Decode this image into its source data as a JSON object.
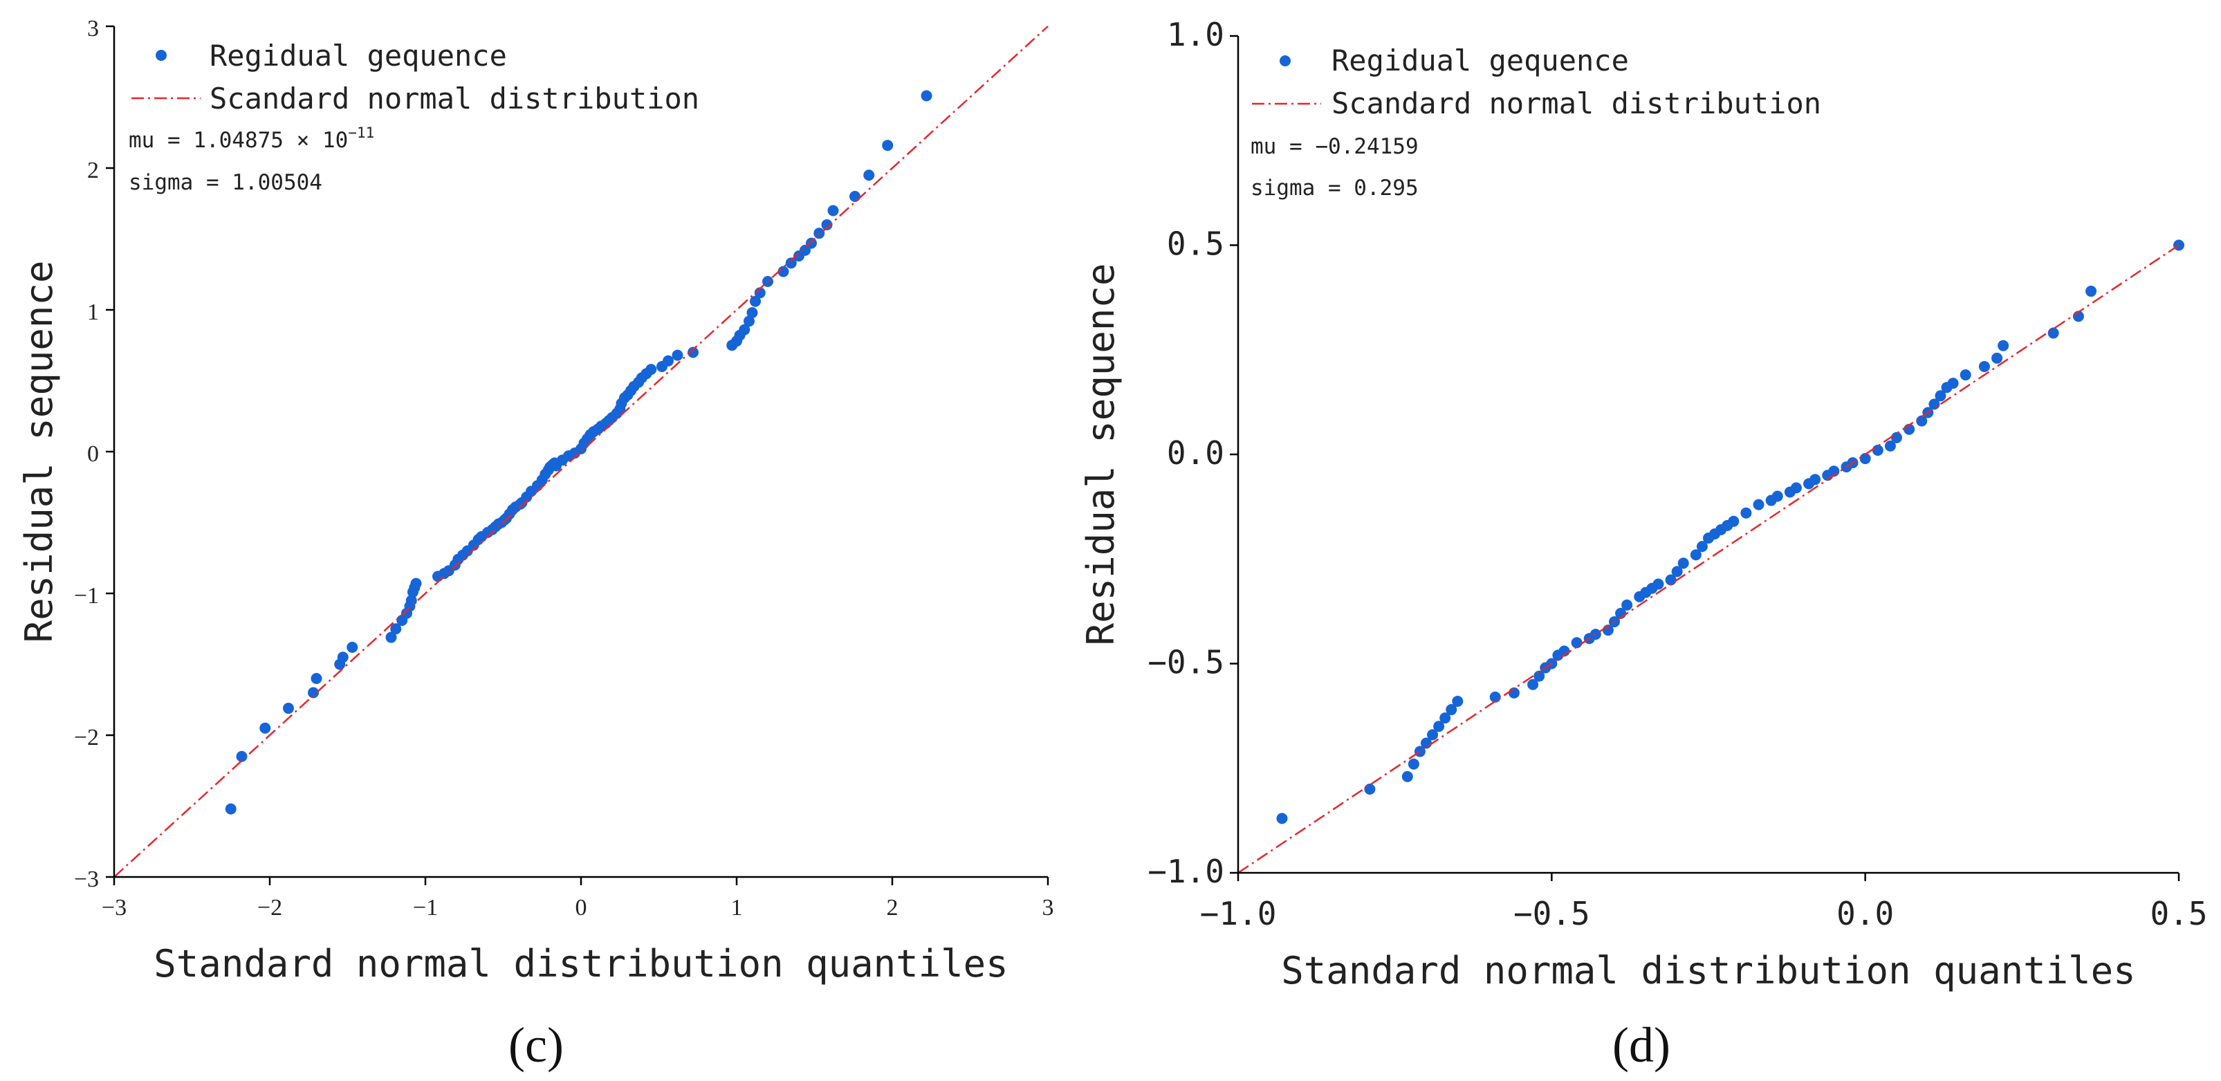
{
  "chart_data": [
    {
      "type": "scatter",
      "panel": "(c)",
      "title": "",
      "xlabel": "Standard normal distribution quantiles",
      "ylabel": "Residual sequence",
      "xlim": [
        -3,
        3
      ],
      "ylim": [
        -3,
        3
      ],
      "xticks": [
        "−3",
        "−2",
        "−1",
        "0",
        "1",
        "2",
        "3"
      ],
      "yticks": [
        "−3",
        "−2",
        "−1",
        "0",
        "1",
        "2",
        "3"
      ],
      "legend": {
        "points": "Regidual gequence",
        "line": "Scandard normal distribution",
        "position": "top-left"
      },
      "stats": {
        "mu_label": "mu = 1.04875 × 10",
        "mu_exp": "−11",
        "sigma_label": "sigma = 1.00504"
      },
      "reference_line": {
        "x": [
          -3,
          3
        ],
        "y": [
          -3,
          3
        ]
      },
      "x": [
        -2.25,
        -2.18,
        -2.03,
        -1.88,
        -1.72,
        -1.7,
        -1.55,
        -1.53,
        -1.47,
        -1.22,
        -1.19,
        -1.15,
        -1.12,
        -1.1,
        -1.09,
        -1.08,
        -1.07,
        -1.06,
        -0.92,
        -0.88,
        -0.85,
        -0.81,
        -0.79,
        -0.76,
        -0.73,
        -0.69,
        -0.66,
        -0.64,
        -0.6,
        -0.57,
        -0.55,
        -0.53,
        -0.51,
        -0.49,
        -0.48,
        -0.46,
        -0.44,
        -0.42,
        -0.39,
        -0.38,
        -0.35,
        -0.32,
        -0.28,
        -0.25,
        -0.23,
        -0.21,
        -0.2,
        -0.19,
        -0.18,
        -0.17,
        -0.16,
        -0.12,
        -0.08,
        -0.04,
        0.0,
        0.02,
        0.04,
        0.06,
        0.08,
        0.11,
        0.13,
        0.16,
        0.18,
        0.2,
        0.23,
        0.25,
        0.26,
        0.28,
        0.3,
        0.32,
        0.34,
        0.37,
        0.39,
        0.42,
        0.45,
        0.52,
        0.56,
        0.62,
        0.72,
        0.97,
        1.0,
        1.02,
        1.05,
        1.08,
        1.1,
        1.12,
        1.15,
        1.2,
        1.3,
        1.35,
        1.4,
        1.44,
        1.48,
        1.53,
        1.58,
        1.62,
        1.76,
        1.85,
        1.97,
        2.22
      ],
      "y": [
        -2.52,
        -2.15,
        -1.95,
        -1.81,
        -1.7,
        -1.6,
        -1.5,
        -1.45,
        -1.38,
        -1.31,
        -1.25,
        -1.19,
        -1.14,
        -1.09,
        -1.05,
        -0.99,
        -0.96,
        -0.93,
        -0.88,
        -0.86,
        -0.84,
        -0.8,
        -0.76,
        -0.73,
        -0.7,
        -0.66,
        -0.62,
        -0.6,
        -0.57,
        -0.55,
        -0.53,
        -0.51,
        -0.5,
        -0.48,
        -0.47,
        -0.44,
        -0.41,
        -0.39,
        -0.37,
        -0.36,
        -0.32,
        -0.28,
        -0.24,
        -0.2,
        -0.16,
        -0.13,
        -0.11,
        -0.1,
        -0.09,
        -0.08,
        -0.1,
        -0.06,
        -0.03,
        -0.01,
        0.02,
        0.06,
        0.09,
        0.12,
        0.14,
        0.16,
        0.18,
        0.2,
        0.22,
        0.24,
        0.27,
        0.3,
        0.34,
        0.38,
        0.4,
        0.43,
        0.46,
        0.49,
        0.52,
        0.55,
        0.58,
        0.6,
        0.64,
        0.68,
        0.7,
        0.75,
        0.78,
        0.82,
        0.86,
        0.92,
        0.98,
        1.06,
        1.12,
        1.2,
        1.27,
        1.33,
        1.38,
        1.42,
        1.47,
        1.54,
        1.6,
        1.7,
        1.8,
        1.95,
        2.16,
        2.51
      ]
    },
    {
      "type": "scatter",
      "panel": "(d)",
      "title": "",
      "xlabel": "Standard normal distribution quantiles",
      "ylabel": "Residual sequence",
      "xlim": [
        -1.0,
        0.5
      ],
      "ylim": [
        -1.0,
        1.0
      ],
      "xticks": [
        "−1.0",
        "−0.5",
        "0.0",
        "0.5"
      ],
      "yticks": [
        "−1.0",
        "−0.5",
        "0.0",
        "0.5",
        "1.0"
      ],
      "legend": {
        "points": "Regidual gequence",
        "line": "Scandard normal distribution",
        "position": "top-left"
      },
      "stats": {
        "mu_label": "mu = −0.24159",
        "sigma_label": "sigma = 0.295"
      },
      "reference_line": {
        "x": [
          -1.0,
          0.5
        ],
        "y": [
          -1.0,
          0.5
        ]
      },
      "x": [
        -0.93,
        -0.79,
        -0.73,
        -0.72,
        -0.71,
        -0.7,
        -0.69,
        -0.68,
        -0.67,
        -0.66,
        -0.65,
        -0.59,
        -0.56,
        -0.53,
        -0.52,
        -0.51,
        -0.5,
        -0.49,
        -0.48,
        -0.46,
        -0.44,
        -0.43,
        -0.41,
        -0.4,
        -0.39,
        -0.38,
        -0.36,
        -0.35,
        -0.34,
        -0.33,
        -0.31,
        -0.3,
        -0.29,
        -0.27,
        -0.26,
        -0.25,
        -0.24,
        -0.23,
        -0.22,
        -0.21,
        -0.19,
        -0.17,
        -0.15,
        -0.14,
        -0.12,
        -0.11,
        -0.09,
        -0.08,
        -0.06,
        -0.05,
        -0.03,
        -0.02,
        0.0,
        0.02,
        0.04,
        0.05,
        0.07,
        0.09,
        0.1,
        0.11,
        0.12,
        0.13,
        0.14,
        0.16,
        0.19,
        0.21,
        0.22,
        0.3,
        0.34,
        0.36,
        0.5
      ],
      "y": [
        -0.87,
        -0.8,
        -0.77,
        -0.74,
        -0.71,
        -0.69,
        -0.67,
        -0.65,
        -0.63,
        -0.61,
        -0.59,
        -0.58,
        -0.57,
        -0.55,
        -0.53,
        -0.51,
        -0.5,
        -0.48,
        -0.47,
        -0.45,
        -0.44,
        -0.43,
        -0.42,
        -0.4,
        -0.38,
        -0.36,
        -0.34,
        -0.33,
        -0.32,
        -0.31,
        -0.3,
        -0.28,
        -0.26,
        -0.24,
        -0.22,
        -0.2,
        -0.19,
        -0.18,
        -0.17,
        -0.16,
        -0.14,
        -0.12,
        -0.11,
        -0.1,
        -0.09,
        -0.08,
        -0.07,
        -0.06,
        -0.05,
        -0.04,
        -0.03,
        -0.02,
        -0.01,
        0.01,
        0.02,
        0.04,
        0.06,
        0.08,
        0.1,
        0.12,
        0.14,
        0.16,
        0.17,
        0.19,
        0.21,
        0.23,
        0.26,
        0.29,
        0.33,
        0.39,
        0.5
      ]
    }
  ]
}
